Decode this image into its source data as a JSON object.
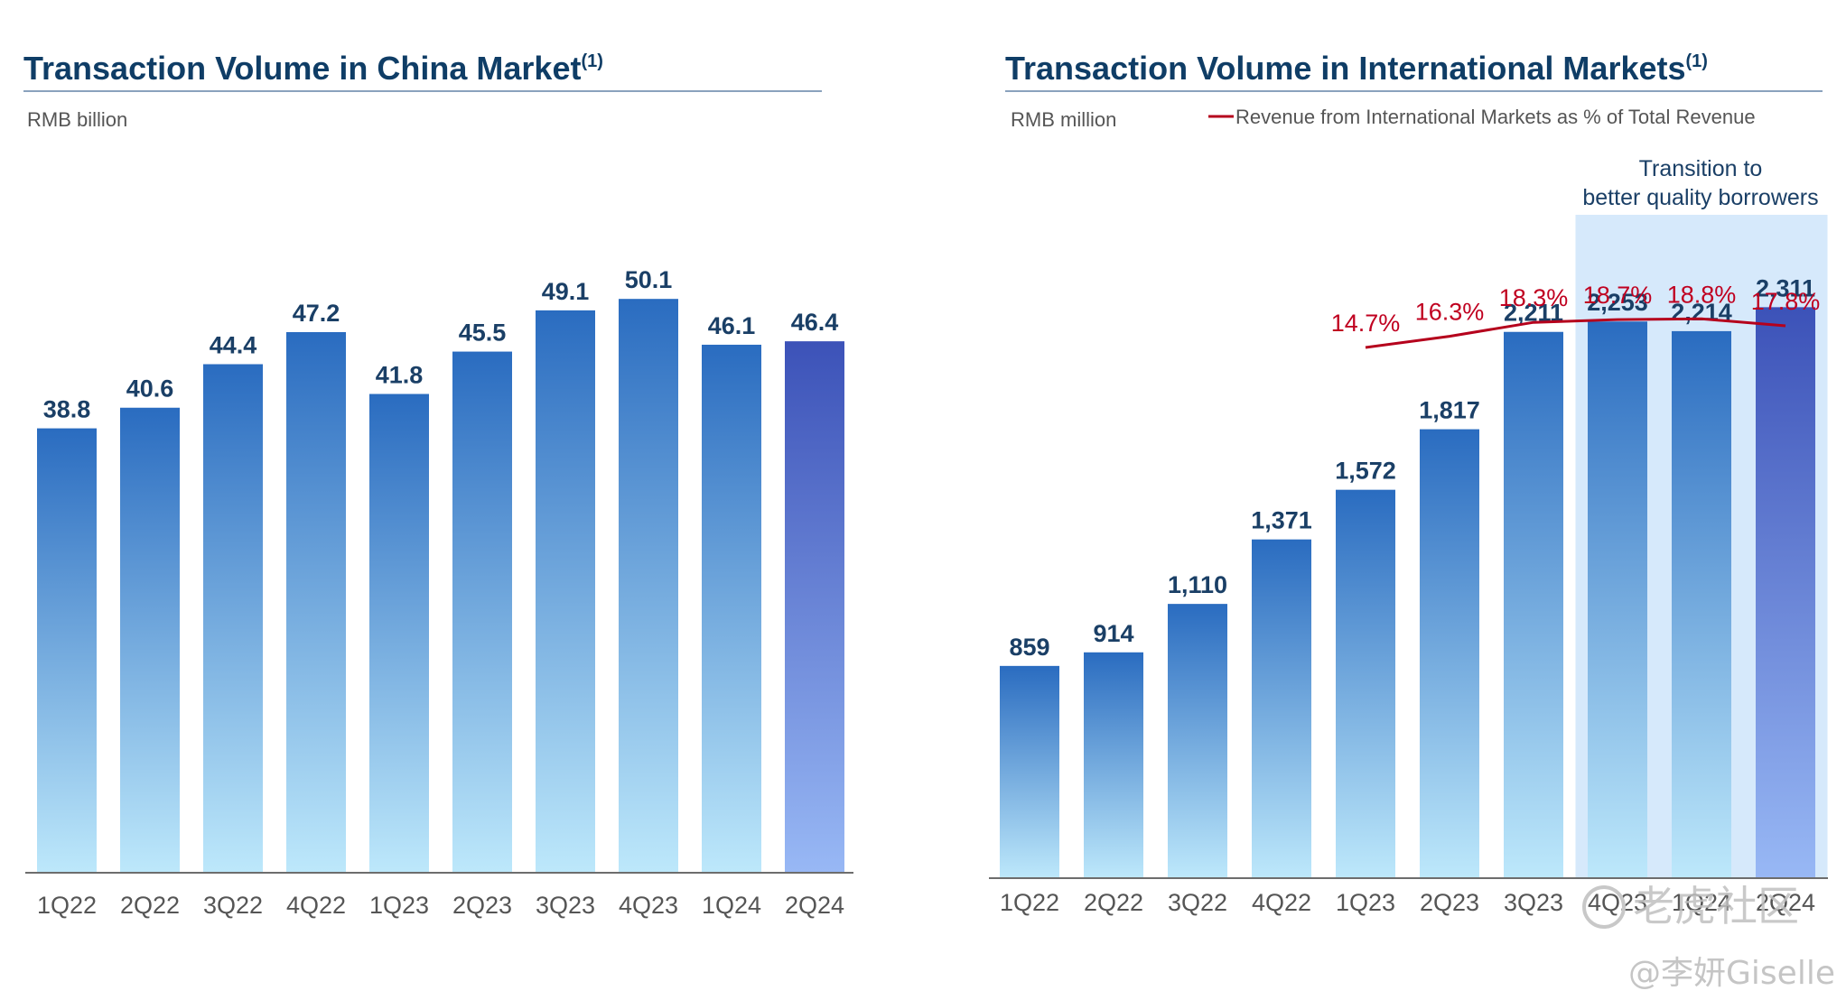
{
  "colors": {
    "title": "#0f3d66",
    "bar_top": "#2a6cc0",
    "bar_bottom": "#bde8fb",
    "highlight_bar_top": "#3c52b8",
    "highlight_bar_bottom": "#98b8f5",
    "line": "#b5001c",
    "shade": "#d6e9fb"
  },
  "chart_data": [
    {
      "type": "bar",
      "title": "Transaction Volume in China Market",
      "title_superscript": "(1)",
      "unit_label": "RMB billion",
      "categories": [
        "1Q22",
        "2Q22",
        "3Q22",
        "4Q22",
        "1Q23",
        "2Q23",
        "3Q23",
        "4Q23",
        "1Q24",
        "2Q24"
      ],
      "values": [
        38.8,
        40.6,
        44.4,
        47.2,
        41.8,
        45.5,
        49.1,
        50.1,
        46.1,
        46.4
      ],
      "value_labels": [
        "38.8",
        "40.6",
        "44.4",
        "47.2",
        "41.8",
        "45.5",
        "49.1",
        "50.1",
        "46.1",
        "46.4"
      ],
      "ylim": [
        0,
        55
      ],
      "grid": false,
      "highlight_index": 9
    },
    {
      "type": "bar",
      "title": "Transaction Volume in International Markets",
      "title_superscript": "(1)",
      "unit_label": "RMB million",
      "categories": [
        "1Q22",
        "2Q22",
        "3Q22",
        "4Q22",
        "1Q23",
        "2Q23",
        "3Q23",
        "4Q23",
        "1Q24",
        "2Q24"
      ],
      "values": [
        859,
        914,
        1110,
        1371,
        1572,
        1817,
        2211,
        2253,
        2214,
        2311
      ],
      "value_labels": [
        "859",
        "914",
        "1,110",
        "1,371",
        "1,572",
        "1,817",
        "2,211",
        "2,253",
        "2,214",
        "2,311"
      ],
      "ylim": [
        0,
        3200
      ],
      "grid": false,
      "highlight_index": 9,
      "line_series": {
        "name": "Revenue from International Markets as % of Total Revenue",
        "categories": [
          "1Q23",
          "2Q23",
          "3Q23",
          "4Q23",
          "1Q24",
          "2Q24"
        ],
        "values": [
          14.7,
          16.3,
          18.3,
          18.7,
          18.8,
          17.8
        ],
        "value_labels": [
          "14.7%",
          "16.3%",
          "18.3%",
          "18.7%",
          "18.8%",
          "17.8%"
        ],
        "legend_position": "top-right"
      },
      "annotation": {
        "lines": [
          "Transition to",
          "better quality borrowers"
        ],
        "span": [
          "4Q23",
          "2Q24"
        ]
      }
    }
  ],
  "watermark": {
    "brand": "老虎社区",
    "author": "@李妍Giselle"
  }
}
